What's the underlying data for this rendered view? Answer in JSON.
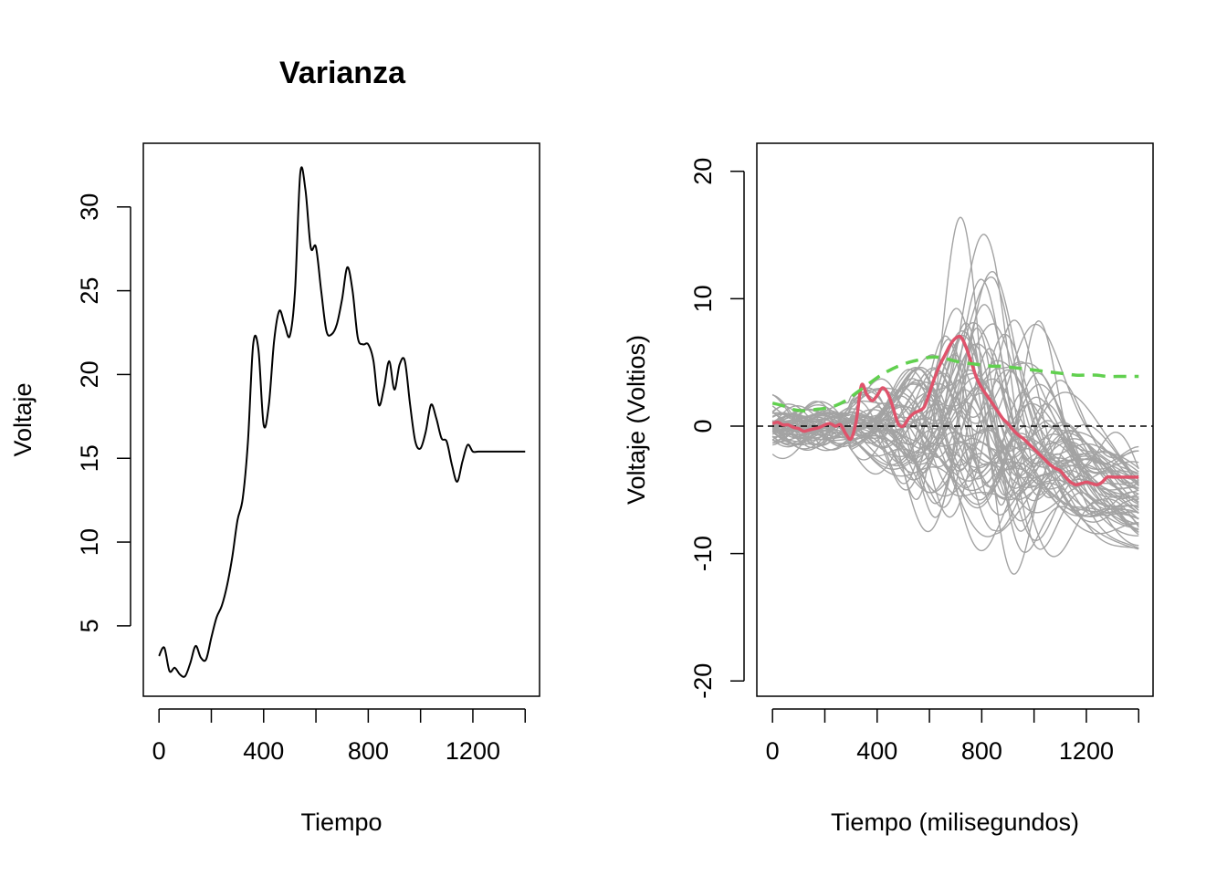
{
  "chart_data": [
    {
      "type": "line",
      "title": "Varianza",
      "xlabel": "Tiempo",
      "ylabel": "Voltaje",
      "xlim": [
        -60,
        1455
      ],
      "ylim": [
        0.8,
        33.8
      ],
      "xticks": [
        0,
        200,
        400,
        600,
        800,
        1000,
        1200,
        1400
      ],
      "xtick_labels": [
        "0",
        "",
        "400",
        "",
        "800",
        "",
        "1200",
        ""
      ],
      "yticks": [
        5,
        10,
        15,
        20,
        25,
        30
      ],
      "ytick_labels": [
        "5",
        "10",
        "15",
        "20",
        "25",
        "30"
      ],
      "series": [
        {
          "color": "#000000",
          "x": [
            0,
            20,
            40,
            60,
            80,
            100,
            120,
            140,
            160,
            180,
            200,
            220,
            240,
            260,
            280,
            300,
            320,
            340,
            360,
            380,
            400,
            420,
            440,
            460,
            480,
            500,
            520,
            540,
            560,
            580,
            600,
            620,
            640,
            660,
            680,
            700,
            720,
            740,
            760,
            780,
            800,
            820,
            840,
            860,
            880,
            900,
            920,
            940,
            960,
            980,
            1000,
            1020,
            1040,
            1060,
            1080,
            1100,
            1120,
            1140,
            1160,
            1180,
            1200,
            1220,
            1240,
            1260,
            1280,
            1300,
            1320,
            1340,
            1360,
            1380,
            1400
          ],
          "values": [
            3.2,
            3.7,
            2.3,
            2.5,
            2.1,
            2.0,
            2.8,
            3.8,
            3.1,
            3.0,
            4.3,
            5.5,
            6.2,
            7.4,
            9.1,
            11.3,
            12.6,
            16.0,
            21.8,
            21.5,
            17.0,
            18.2,
            22.0,
            23.8,
            23.0,
            22.3,
            25.0,
            32.0,
            31.0,
            27.6,
            27.6,
            25.0,
            22.6,
            22.4,
            23.0,
            24.5,
            26.4,
            25.0,
            22.2,
            21.8,
            21.8,
            20.8,
            18.2,
            19.2,
            20.8,
            19.1,
            20.6,
            20.8,
            18.2,
            16.0,
            15.6,
            16.6,
            18.2,
            17.4,
            16.2,
            16.0,
            14.6,
            13.6,
            14.8,
            15.8,
            15.4,
            15.4,
            15.4,
            15.4,
            15.4,
            15.4,
            15.4,
            15.4,
            15.4,
            15.4,
            15.4
          ]
        }
      ]
    },
    {
      "type": "line",
      "title": "",
      "xlabel": "Tiempo (milisegundos)",
      "ylabel": "Voltaje (Voltios)",
      "xlim": [
        -60,
        1455
      ],
      "ylim": [
        -21.2,
        22.2
      ],
      "xticks": [
        0,
        200,
        400,
        600,
        800,
        1000,
        1200,
        1400
      ],
      "xtick_labels": [
        "0",
        "",
        "400",
        "",
        "800",
        "",
        "1200",
        ""
      ],
      "yticks": [
        -20,
        -10,
        0,
        10,
        20
      ],
      "ytick_labels": [
        "-20",
        "-10",
        "0",
        "10",
        "20"
      ],
      "reference_line": {
        "y": 0,
        "color": "#000000",
        "style": "dashed"
      },
      "background_curves": {
        "color": "#a3a3a3",
        "count": 60,
        "seed": 7,
        "amplitude_peak_x": 780,
        "amplitude_min": 2.5,
        "amplitude_max": 13
      },
      "series": [
        {
          "color": "#df536b",
          "x": [
            0,
            20,
            40,
            60,
            80,
            100,
            120,
            140,
            160,
            180,
            200,
            220,
            240,
            260,
            280,
            300,
            320,
            340,
            360,
            380,
            400,
            420,
            440,
            460,
            480,
            500,
            520,
            540,
            560,
            580,
            600,
            620,
            640,
            660,
            680,
            700,
            720,
            740,
            760,
            780,
            800,
            820,
            840,
            860,
            880,
            900,
            920,
            940,
            960,
            980,
            1000,
            1020,
            1040,
            1060,
            1080,
            1100,
            1120,
            1140,
            1160,
            1180,
            1200,
            1220,
            1240,
            1260,
            1280,
            1300,
            1320,
            1340,
            1360,
            1380,
            1400
          ],
          "values": [
            0.2,
            0.3,
            0.1,
            0.1,
            -0.1,
            -0.2,
            -0.4,
            -0.3,
            -0.2,
            -0.1,
            0.1,
            0.2,
            0.0,
            0.1,
            -0.6,
            -1.0,
            0.4,
            3.2,
            2.5,
            2.0,
            2.4,
            3.0,
            2.6,
            1.5,
            0.2,
            0.0,
            0.6,
            1.0,
            1.2,
            1.5,
            2.6,
            3.8,
            4.8,
            5.6,
            6.4,
            6.9,
            7.0,
            6.2,
            5.0,
            3.8,
            3.0,
            2.4,
            1.8,
            1.2,
            0.6,
            0.2,
            -0.3,
            -0.7,
            -1.0,
            -1.4,
            -1.8,
            -2.2,
            -2.6,
            -3.0,
            -3.3,
            -3.5,
            -4.0,
            -4.4,
            -4.6,
            -4.5,
            -4.4,
            -4.5,
            -4.6,
            -4.4,
            -4.0,
            -4.0,
            -4.0,
            -4.0,
            -4.0,
            -4.0,
            -4.0
          ]
        },
        {
          "color": "#61d04f",
          "style": "dashed",
          "x": [
            0,
            40,
            80,
            120,
            160,
            200,
            240,
            280,
            320,
            360,
            400,
            440,
            480,
            520,
            560,
            600,
            640,
            680,
            720,
            760,
            800,
            840,
            880,
            920,
            960,
            1000,
            1040,
            1080,
            1120,
            1160,
            1200,
            1240,
            1280,
            1320,
            1360,
            1400
          ],
          "values": [
            1.8,
            1.6,
            1.3,
            1.2,
            1.3,
            1.4,
            1.6,
            2.0,
            2.6,
            3.2,
            3.8,
            4.3,
            4.7,
            5.0,
            5.2,
            5.4,
            5.4,
            5.2,
            5.0,
            4.9,
            4.8,
            4.7,
            4.7,
            4.6,
            4.5,
            4.4,
            4.3,
            4.2,
            4.1,
            4.0,
            4.0,
            4.0,
            3.9,
            3.9,
            3.9,
            3.9
          ]
        }
      ]
    }
  ]
}
